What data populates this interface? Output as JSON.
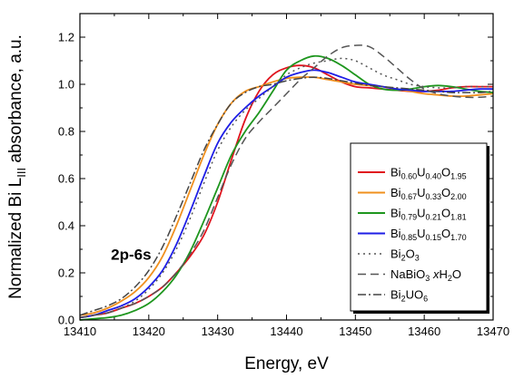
{
  "chart_data": {
    "type": "line",
    "xlabel": "Energy, eV",
    "ylabel_parts": {
      "pre": "Normalized Bi L",
      "sub": "III",
      "post": " absorbance, a.u."
    },
    "xlim": [
      13410,
      13470
    ],
    "ylim": [
      0.0,
      1.3
    ],
    "xticks": [
      13410,
      13420,
      13430,
      13440,
      13450,
      13460,
      13470
    ],
    "yticks": [
      0.0,
      0.2,
      0.4,
      0.6,
      0.8,
      1.0,
      1.2
    ],
    "xtick_labels": [
      "13410",
      "13420",
      "13430",
      "13440",
      "13450",
      "13460",
      "13470"
    ],
    "ytick_labels": [
      "0.0",
      "0.2",
      "0.4",
      "0.6",
      "0.8",
      "1.0",
      "1.2"
    ],
    "annotation": {
      "text": "2p-6s",
      "x": 13414.5,
      "y": 0.255
    },
    "legend_position": "lower-right",
    "series": [
      {
        "name_parts": [
          [
            "Bi",
            ""
          ],
          [
            "0.60",
            "sub"
          ],
          [
            "U",
            ""
          ],
          [
            "0.40",
            "sub"
          ],
          [
            "O",
            ""
          ],
          [
            "1.95",
            "sub"
          ]
        ],
        "color": "#e0141e",
        "dash": "solid",
        "x": [
          13410,
          13412,
          13414,
          13416,
          13418,
          13420,
          13422,
          13424,
          13426,
          13428,
          13430,
          13432,
          13434,
          13436,
          13438,
          13440,
          13442,
          13444,
          13446,
          13448,
          13450,
          13452,
          13454,
          13456,
          13458,
          13460,
          13462,
          13464,
          13466,
          13468,
          13470
        ],
        "y": [
          0.01,
          0.02,
          0.03,
          0.05,
          0.07,
          0.1,
          0.14,
          0.2,
          0.27,
          0.36,
          0.5,
          0.68,
          0.85,
          0.97,
          1.04,
          1.07,
          1.08,
          1.07,
          1.04,
          1.01,
          0.99,
          0.985,
          0.98,
          0.975,
          0.97,
          0.97,
          0.975,
          0.985,
          0.99,
          0.99,
          0.99
        ]
      },
      {
        "name_parts": [
          [
            "Bi",
            ""
          ],
          [
            "0.67",
            "sub"
          ],
          [
            "U",
            ""
          ],
          [
            "0.33",
            "sub"
          ],
          [
            "O",
            ""
          ],
          [
            "2.00",
            "sub"
          ]
        ],
        "color": "#f0901e",
        "dash": "solid",
        "x": [
          13410,
          13412,
          13414,
          13416,
          13418,
          13420,
          13422,
          13424,
          13426,
          13428,
          13430,
          13432,
          13434,
          13436,
          13438,
          13440,
          13442,
          13444,
          13446,
          13448,
          13450,
          13452,
          13454,
          13456,
          13458,
          13460,
          13462,
          13464,
          13466,
          13468,
          13470
        ],
        "y": [
          0.02,
          0.03,
          0.05,
          0.08,
          0.12,
          0.18,
          0.27,
          0.4,
          0.55,
          0.7,
          0.83,
          0.92,
          0.97,
          0.99,
          1.01,
          1.025,
          1.03,
          1.03,
          1.02,
          1.01,
          1.0,
          0.995,
          0.99,
          0.98,
          0.97,
          0.96,
          0.955,
          0.95,
          0.95,
          0.955,
          0.96
        ]
      },
      {
        "name_parts": [
          [
            "Bi",
            ""
          ],
          [
            "0.79",
            "sub"
          ],
          [
            "U",
            ""
          ],
          [
            "0.21",
            "sub"
          ],
          [
            "O",
            ""
          ],
          [
            "1.81",
            "sub"
          ]
        ],
        "color": "#1e961e",
        "dash": "solid",
        "x": [
          13410,
          13412,
          13414,
          13416,
          13418,
          13420,
          13422,
          13424,
          13426,
          13428,
          13430,
          13432,
          13434,
          13436,
          13438,
          13440,
          13442,
          13444,
          13446,
          13448,
          13450,
          13452,
          13454,
          13456,
          13458,
          13460,
          13462,
          13464,
          13466,
          13468,
          13470
        ],
        "y": [
          0.0,
          0.005,
          0.01,
          0.02,
          0.04,
          0.07,
          0.12,
          0.19,
          0.29,
          0.42,
          0.56,
          0.7,
          0.8,
          0.88,
          0.97,
          1.06,
          1.1,
          1.12,
          1.11,
          1.08,
          1.04,
          1.0,
          0.98,
          0.975,
          0.98,
          0.99,
          0.995,
          0.99,
          0.98,
          0.97,
          0.965
        ]
      },
      {
        "name_parts": [
          [
            "Bi",
            ""
          ],
          [
            "0.85",
            "sub"
          ],
          [
            "U",
            ""
          ],
          [
            "0.15",
            "sub"
          ],
          [
            "O",
            ""
          ],
          [
            "1.70",
            "sub"
          ]
        ],
        "color": "#1e1ee6",
        "dash": "solid",
        "x": [
          13410,
          13412,
          13414,
          13416,
          13418,
          13420,
          13422,
          13424,
          13426,
          13428,
          13430,
          13432,
          13434,
          13436,
          13438,
          13440,
          13442,
          13444,
          13446,
          13448,
          13450,
          13452,
          13454,
          13456,
          13458,
          13460,
          13462,
          13464,
          13466,
          13468,
          13470
        ],
        "y": [
          0.01,
          0.02,
          0.04,
          0.06,
          0.09,
          0.14,
          0.21,
          0.32,
          0.46,
          0.61,
          0.75,
          0.84,
          0.9,
          0.95,
          0.99,
          1.03,
          1.05,
          1.06,
          1.05,
          1.03,
          1.01,
          1.0,
          0.99,
          0.98,
          0.975,
          0.97,
          0.97,
          0.97,
          0.975,
          0.98,
          0.98
        ]
      },
      {
        "name_parts": [
          [
            "Bi",
            ""
          ],
          [
            "2",
            "sub"
          ],
          [
            "O",
            ""
          ],
          [
            "3",
            "sub"
          ]
        ],
        "color": "#555555",
        "dash": "2,4",
        "x": [
          13410,
          13412,
          13414,
          13416,
          13418,
          13420,
          13422,
          13424,
          13426,
          13428,
          13430,
          13432,
          13434,
          13436,
          13438,
          13440,
          13442,
          13444,
          13446,
          13448,
          13450,
          13452,
          13454,
          13456,
          13458,
          13460,
          13462,
          13464,
          13466,
          13468,
          13470
        ],
        "y": [
          0.01,
          0.02,
          0.03,
          0.05,
          0.08,
          0.13,
          0.2,
          0.3,
          0.43,
          0.58,
          0.72,
          0.82,
          0.89,
          0.94,
          0.99,
          1.04,
          1.07,
          1.09,
          1.1,
          1.11,
          1.1,
          1.07,
          1.04,
          1.02,
          1.0,
          0.99,
          0.985,
          0.985,
          0.99,
          0.99,
          0.99
        ]
      },
      {
        "name_parts": [
          [
            "NaBiO",
            ""
          ],
          [
            "3",
            "sub"
          ],
          [
            " ",
            ""
          ],
          [
            "x",
            "italic"
          ],
          [
            "H",
            ""
          ],
          [
            "2",
            "sub"
          ],
          [
            "O",
            ""
          ]
        ],
        "color": "#555555",
        "dash": "9,5",
        "x": [
          13410,
          13412,
          13414,
          13416,
          13418,
          13420,
          13422,
          13424,
          13426,
          13428,
          13430,
          13432,
          13434,
          13436,
          13438,
          13440,
          13442,
          13444,
          13446,
          13448,
          13450,
          13452,
          13454,
          13456,
          13458,
          13460,
          13462,
          13464,
          13466,
          13468,
          13470
        ],
        "y": [
          0.01,
          0.02,
          0.03,
          0.05,
          0.07,
          0.1,
          0.14,
          0.2,
          0.28,
          0.38,
          0.52,
          0.66,
          0.77,
          0.84,
          0.9,
          0.96,
          1.02,
          1.07,
          1.12,
          1.155,
          1.165,
          1.16,
          1.12,
          1.07,
          1.02,
          0.98,
          0.96,
          0.95,
          0.945,
          0.945,
          0.95
        ]
      },
      {
        "name_parts": [
          [
            "Bi",
            ""
          ],
          [
            "2",
            "sub"
          ],
          [
            "UO",
            ""
          ],
          [
            "6",
            "sub"
          ]
        ],
        "color": "#444444",
        "dash": "9,3,2,3",
        "x": [
          13410,
          13412,
          13414,
          13416,
          13418,
          13420,
          13422,
          13424,
          13426,
          13428,
          13430,
          13432,
          13434,
          13436,
          13438,
          13440,
          13442,
          13444,
          13446,
          13448,
          13450,
          13452,
          13454,
          13456,
          13458,
          13460,
          13462,
          13464,
          13466,
          13468,
          13470
        ],
        "y": [
          0.02,
          0.04,
          0.06,
          0.09,
          0.14,
          0.21,
          0.31,
          0.44,
          0.58,
          0.72,
          0.83,
          0.92,
          0.965,
          0.99,
          1.0,
          1.015,
          1.025,
          1.03,
          1.025,
          1.015,
          1.005,
          0.995,
          0.99,
          0.985,
          0.98,
          0.975,
          0.97,
          0.965,
          0.965,
          0.965,
          0.97
        ]
      }
    ]
  }
}
